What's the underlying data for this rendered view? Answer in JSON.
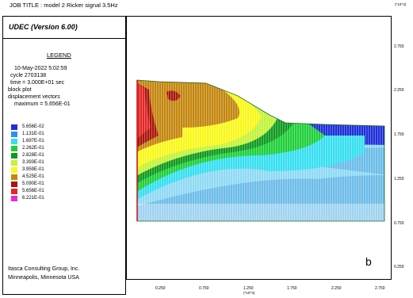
{
  "job_title": "JOB TITLE : model 2 Ricker signal 3.5Hz",
  "program_title": "UDEC (Version 6.00)",
  "legend_heading": "LEGEND",
  "run_info": [
    "10-May-2022  5:02:59",
    "cycle  2703138",
    "time  = 3.000E+01 sec",
    "block plot",
    "displacement vectors",
    "maximum =    5.656E-01"
  ],
  "contour_levels": [
    {
      "label": "5.656E-02",
      "color": "#1e2fd8"
    },
    {
      "label": "1.131E-01",
      "color": "#2f8ff2"
    },
    {
      "label": "1.697E-01",
      "color": "#36dff0"
    },
    {
      "label": "2.262E-01",
      "color": "#1fcf3a"
    },
    {
      "label": "2.828E-01",
      "color": "#0f9a1f"
    },
    {
      "label": "3.393E-01",
      "color": "#c4f23a"
    },
    {
      "label": "3.959E-01",
      "color": "#f8f81a"
    },
    {
      "label": "4.525E-01",
      "color": "#c4860e"
    },
    {
      "label": "5.090E-01",
      "color": "#a8160c"
    },
    {
      "label": "5.656E-01",
      "color": "#e42626"
    },
    {
      "label": "6.221E-01",
      "color": "#e82ad6"
    }
  ],
  "credit": [
    "Itasca Consulting Group, Inc.",
    "Minneapolis, Minnesota  USA"
  ],
  "axis_exponent": "(*10^3)",
  "y_ticks": [
    "2.750",
    "2.250",
    "1.750",
    "1.250",
    "0.750",
    "0.250"
  ],
  "x_ticks": [
    "0.250",
    "0.750",
    "1.250",
    "1.750",
    "2.250",
    "2.750"
  ],
  "panel_letter": "b"
}
